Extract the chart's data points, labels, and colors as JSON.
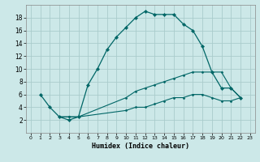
{
  "xlabel": "Humidex (Indice chaleur)",
  "bg_color": "#cce8e8",
  "grid_color": "#aacccc",
  "line_color": "#006666",
  "xlim": [
    -0.5,
    23.5
  ],
  "ylim": [
    0,
    20
  ],
  "xticks": [
    0,
    1,
    2,
    3,
    4,
    5,
    6,
    7,
    8,
    9,
    10,
    11,
    12,
    13,
    14,
    15,
    16,
    17,
    18,
    19,
    20,
    21,
    22,
    23
  ],
  "yticks": [
    2,
    4,
    6,
    8,
    10,
    12,
    14,
    16,
    18
  ],
  "series1_x": [
    1,
    2,
    3,
    4,
    5,
    6,
    7,
    8,
    9,
    10,
    11,
    12,
    13,
    14,
    15,
    16,
    17,
    18,
    19,
    20,
    21,
    22
  ],
  "series1_y": [
    6,
    4,
    2.5,
    2,
    2.5,
    7.5,
    10,
    13,
    15,
    16.5,
    18,
    19,
    18.5,
    18.5,
    18.5,
    17,
    16,
    13.5,
    9.5,
    7,
    7,
    5.5
  ],
  "series2_x": [
    3,
    4,
    5,
    10,
    11,
    12,
    13,
    14,
    15,
    16,
    17,
    18,
    19,
    20,
    21,
    22
  ],
  "series2_y": [
    2.5,
    2.5,
    2.5,
    5.5,
    6.5,
    7,
    7.5,
    8,
    8.5,
    9,
    9.5,
    9.5,
    9.5,
    9.5,
    7,
    5.5
  ],
  "series3_x": [
    3,
    4,
    5,
    10,
    11,
    12,
    13,
    14,
    15,
    16,
    17,
    18,
    19,
    20,
    21,
    22
  ],
  "series3_y": [
    2.5,
    2.5,
    2.5,
    3.5,
    4,
    4,
    4.5,
    5,
    5.5,
    5.5,
    6,
    6,
    5.5,
    5,
    5,
    5.5
  ]
}
